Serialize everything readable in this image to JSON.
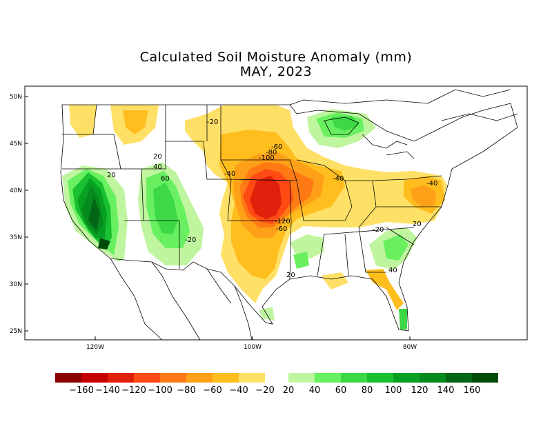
{
  "title": "Calculated Soil Moisture Anomaly (mm)",
  "subtitle": "MAY, 2023",
  "lat_labels": [
    "50N",
    "45N",
    "40N",
    "35N",
    "30N",
    "25N"
  ],
  "lon_labels": [
    "120W",
    "100W",
    "80W"
  ],
  "contour_labels": [
    "-20",
    "20",
    "40",
    "60",
    "-60",
    "-80",
    "-100",
    "-40",
    "-40",
    "-40",
    "-120",
    "-60",
    "20",
    "-20",
    "20",
    "-20",
    "40",
    "20"
  ],
  "colorbar": {
    "negative_colors": [
      "#8b0000",
      "#c40000",
      "#e0200a",
      "#ff4a14",
      "#ff7a14",
      "#ffa019",
      "#ffbe1e",
      "#ffe066"
    ],
    "positive_colors": [
      "#c0f5a0",
      "#68f060",
      "#3cd846",
      "#19c030",
      "#08a022",
      "#068a1e",
      "#036616",
      "#004a0a"
    ],
    "labels": [
      "−160",
      "−140",
      "−120",
      "−100",
      "−80",
      "−60",
      "−40",
      "−20",
      "20",
      "40",
      "60",
      "80",
      "100",
      "120",
      "140",
      "160"
    ]
  },
  "colors": {
    "neg20": "#ffe066",
    "neg40": "#ffbe1e",
    "neg60": "#ffa019",
    "neg80": "#ff7a14",
    "neg100": "#ff4a14",
    "neg120": "#e0200a",
    "pos20": "#c0f5a0",
    "pos40": "#68f060",
    "pos60": "#3cd846",
    "pos80": "#19c030",
    "pos100": "#08a022",
    "pos120": "#068a1e",
    "pos140": "#036616",
    "pos160": "#004a0a"
  }
}
